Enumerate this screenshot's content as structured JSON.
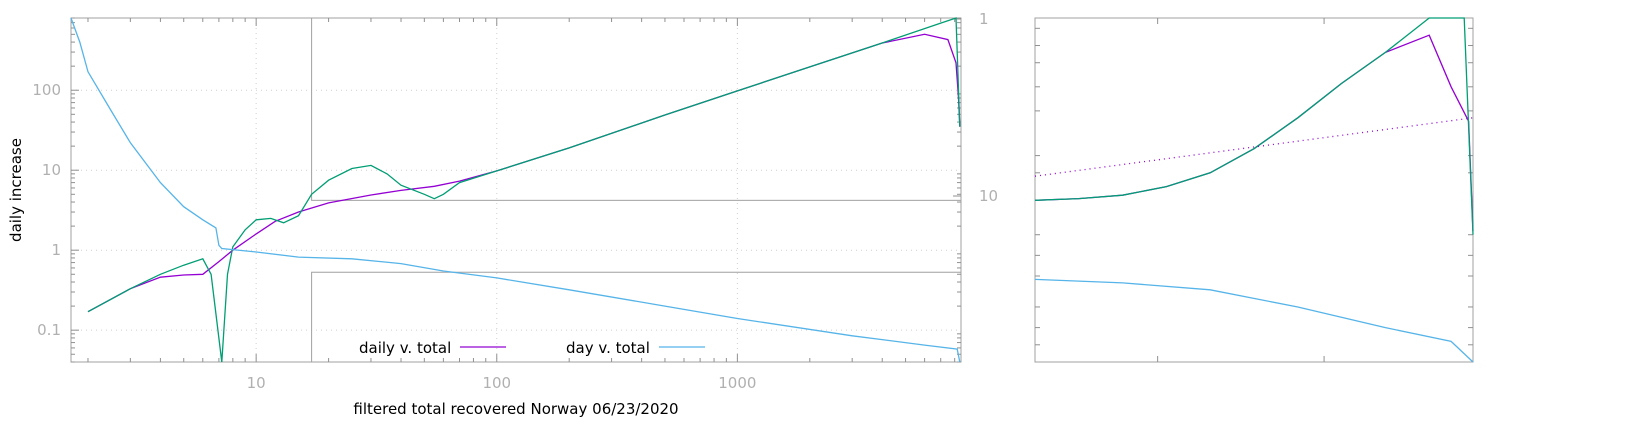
{
  "colors": {
    "daily_v_total": "#9400d3",
    "filtered": "#009e73",
    "day_v_total": "#56b4e9",
    "frame": "#a0a0a0",
    "tick_text": "#b0b0b0"
  },
  "chart_data": [
    {
      "type": "line",
      "title": "",
      "xlabel": "filtered total recovered Norway 06/23/2020",
      "ylabel": "daily increase",
      "x_scale": "log",
      "y_scale": "log",
      "xlim": [
        1.7,
        8500
      ],
      "ylim": [
        0.04,
        800
      ],
      "x_ticks": [
        "10",
        "100",
        "1000"
      ],
      "y_ticks": [
        "0.1",
        "1",
        "10",
        "100"
      ],
      "y2_ticks": [
        "1",
        "10"
      ],
      "grid": true,
      "legend": {
        "placement": "bottom-left"
      },
      "series": [
        {
          "name": "daily v. total",
          "color_key": "daily_v_total",
          "x": [
            2,
            3,
            4,
            5,
            6,
            7,
            8,
            10,
            12,
            15,
            20,
            30,
            40,
            55,
            70,
            100,
            200,
            500,
            1000,
            2000,
            4000,
            6000,
            7500,
            8100,
            8300,
            8400
          ],
          "y": [
            0.17,
            0.33,
            0.46,
            0.49,
            0.5,
            0.72,
            1.0,
            1.6,
            2.3,
            3.0,
            3.9,
            4.9,
            5.6,
            6.3,
            7.3,
            9.8,
            19,
            49,
            98,
            196,
            390,
            500,
            430,
            220,
            80,
            35
          ]
        },
        {
          "name": "",
          "color_key": "filtered",
          "x": [
            2,
            3,
            4,
            5,
            6,
            6.5,
            7.2,
            7.6,
            8,
            9,
            10,
            11.5,
            13,
            15,
            17,
            20,
            25,
            30,
            35,
            40,
            50,
            55,
            60,
            70,
            100,
            200,
            500,
            1000,
            2000,
            4000,
            7000,
            8100,
            8200,
            8400
          ],
          "y": [
            0.17,
            0.33,
            0.5,
            0.65,
            0.78,
            0.5,
            0.04,
            0.5,
            1.1,
            1.8,
            2.4,
            2.5,
            2.2,
            2.7,
            5.0,
            7.5,
            10.5,
            11.5,
            9.0,
            6.5,
            5.0,
            4.4,
            5.0,
            7.0,
            9.8,
            19,
            49,
            98,
            196,
            390,
            690,
            800,
            300,
            35
          ]
        },
        {
          "name": "day v. total",
          "color_key": "day_v_total",
          "x": [
            1.7,
            1.85,
            2,
            2.5,
            3,
            4,
            5,
            6,
            6.8,
            7.0,
            7.2,
            10,
            15,
            25,
            40,
            60,
            100,
            200,
            500,
            1000,
            3000,
            6000,
            8200,
            8400
          ],
          "y": [
            800,
            400,
            170,
            55,
            22,
            7,
            3.5,
            2.4,
            1.9,
            1.15,
            1.05,
            0.95,
            0.82,
            0.78,
            0.68,
            0.55,
            0.45,
            0.32,
            0.2,
            0.14,
            0.085,
            0.065,
            0.058,
            0.04
          ]
        }
      ],
      "inset_boxes": [
        {
          "x_range": [
            17,
            8500
          ],
          "y_range": [
            4.2,
            800
          ]
        },
        {
          "x_range": [
            17,
            8500
          ],
          "y_range": [
            0.04,
            0.53
          ]
        }
      ]
    },
    {
      "type": "line",
      "title": "",
      "x_scale": "log",
      "y_scale": "log",
      "grid": false,
      "series": [
        {
          "name": "",
          "color_key": "daily_v_total",
          "x": [
            0,
            0.1,
            0.2,
            0.3,
            0.4,
            0.5,
            0.6,
            0.7,
            0.8,
            0.9,
            0.95,
            0.99,
            1.0
          ],
          "y": [
            0.53,
            0.525,
            0.515,
            0.49,
            0.45,
            0.38,
            0.29,
            0.19,
            0.1,
            0.05,
            0.2,
            0.3,
            0.62
          ]
        },
        {
          "name": "",
          "color_key": "filtered",
          "x": [
            0,
            0.1,
            0.2,
            0.3,
            0.4,
            0.5,
            0.6,
            0.7,
            0.8,
            0.9,
            0.98,
            1.0
          ],
          "y": [
            0.53,
            0.525,
            0.515,
            0.49,
            0.45,
            0.38,
            0.29,
            0.19,
            0.1,
            0.0,
            0.0,
            0.63
          ]
        },
        {
          "name": "",
          "color_key": "daily_v_total",
          "dashed": true,
          "x": [
            0,
            1.0
          ],
          "y": [
            0.46,
            0.29
          ]
        },
        {
          "name": "",
          "color_key": "day_v_total",
          "x": [
            0,
            0.2,
            0.4,
            0.6,
            0.8,
            0.95,
            1.0
          ],
          "y": [
            0.76,
            0.77,
            0.79,
            0.84,
            0.9,
            0.94,
            1.0
          ]
        }
      ]
    }
  ]
}
